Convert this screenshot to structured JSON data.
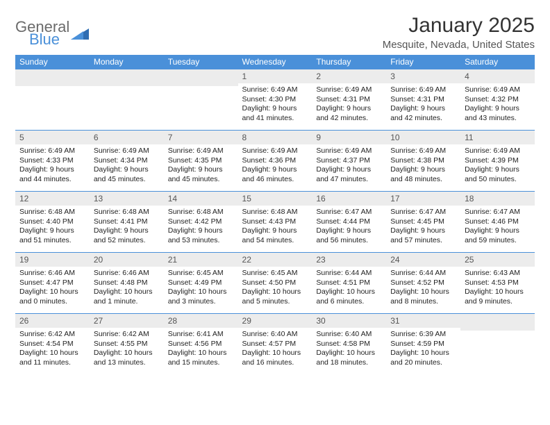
{
  "logo": {
    "text_top": "General",
    "text_bottom": "Blue",
    "top_color": "#7a7a7a",
    "bottom_color": "#4a90d9",
    "triangle_color": "#2f6db2"
  },
  "title": "January 2025",
  "subtitle": "Mesquite, Nevada, United States",
  "colors": {
    "header_bg": "#4a90d9",
    "header_fg": "#ffffff",
    "daynum_bg": "#ececec",
    "daynum_fg": "#555555",
    "rule": "#4a90d9",
    "page_bg": "#ffffff",
    "body_text": "#222222"
  },
  "fonts": {
    "title_size": 30,
    "subtitle_size": 15,
    "th_size": 12,
    "daynum_size": 12,
    "body_size": 10.5
  },
  "day_headers": [
    "Sunday",
    "Monday",
    "Tuesday",
    "Wednesday",
    "Thursday",
    "Friday",
    "Saturday"
  ],
  "weeks": [
    [
      null,
      null,
      null,
      {
        "n": "1",
        "sunrise": "Sunrise: 6:49 AM",
        "sunset": "Sunset: 4:30 PM",
        "daylight": "Daylight: 9 hours and 41 minutes."
      },
      {
        "n": "2",
        "sunrise": "Sunrise: 6:49 AM",
        "sunset": "Sunset: 4:31 PM",
        "daylight": "Daylight: 9 hours and 42 minutes."
      },
      {
        "n": "3",
        "sunrise": "Sunrise: 6:49 AM",
        "sunset": "Sunset: 4:31 PM",
        "daylight": "Daylight: 9 hours and 42 minutes."
      },
      {
        "n": "4",
        "sunrise": "Sunrise: 6:49 AM",
        "sunset": "Sunset: 4:32 PM",
        "daylight": "Daylight: 9 hours and 43 minutes."
      }
    ],
    [
      {
        "n": "5",
        "sunrise": "Sunrise: 6:49 AM",
        "sunset": "Sunset: 4:33 PM",
        "daylight": "Daylight: 9 hours and 44 minutes."
      },
      {
        "n": "6",
        "sunrise": "Sunrise: 6:49 AM",
        "sunset": "Sunset: 4:34 PM",
        "daylight": "Daylight: 9 hours and 45 minutes."
      },
      {
        "n": "7",
        "sunrise": "Sunrise: 6:49 AM",
        "sunset": "Sunset: 4:35 PM",
        "daylight": "Daylight: 9 hours and 45 minutes."
      },
      {
        "n": "8",
        "sunrise": "Sunrise: 6:49 AM",
        "sunset": "Sunset: 4:36 PM",
        "daylight": "Daylight: 9 hours and 46 minutes."
      },
      {
        "n": "9",
        "sunrise": "Sunrise: 6:49 AM",
        "sunset": "Sunset: 4:37 PM",
        "daylight": "Daylight: 9 hours and 47 minutes."
      },
      {
        "n": "10",
        "sunrise": "Sunrise: 6:49 AM",
        "sunset": "Sunset: 4:38 PM",
        "daylight": "Daylight: 9 hours and 48 minutes."
      },
      {
        "n": "11",
        "sunrise": "Sunrise: 6:49 AM",
        "sunset": "Sunset: 4:39 PM",
        "daylight": "Daylight: 9 hours and 50 minutes."
      }
    ],
    [
      {
        "n": "12",
        "sunrise": "Sunrise: 6:48 AM",
        "sunset": "Sunset: 4:40 PM",
        "daylight": "Daylight: 9 hours and 51 minutes."
      },
      {
        "n": "13",
        "sunrise": "Sunrise: 6:48 AM",
        "sunset": "Sunset: 4:41 PM",
        "daylight": "Daylight: 9 hours and 52 minutes."
      },
      {
        "n": "14",
        "sunrise": "Sunrise: 6:48 AM",
        "sunset": "Sunset: 4:42 PM",
        "daylight": "Daylight: 9 hours and 53 minutes."
      },
      {
        "n": "15",
        "sunrise": "Sunrise: 6:48 AM",
        "sunset": "Sunset: 4:43 PM",
        "daylight": "Daylight: 9 hours and 54 minutes."
      },
      {
        "n": "16",
        "sunrise": "Sunrise: 6:47 AM",
        "sunset": "Sunset: 4:44 PM",
        "daylight": "Daylight: 9 hours and 56 minutes."
      },
      {
        "n": "17",
        "sunrise": "Sunrise: 6:47 AM",
        "sunset": "Sunset: 4:45 PM",
        "daylight": "Daylight: 9 hours and 57 minutes."
      },
      {
        "n": "18",
        "sunrise": "Sunrise: 6:47 AM",
        "sunset": "Sunset: 4:46 PM",
        "daylight": "Daylight: 9 hours and 59 minutes."
      }
    ],
    [
      {
        "n": "19",
        "sunrise": "Sunrise: 6:46 AM",
        "sunset": "Sunset: 4:47 PM",
        "daylight": "Daylight: 10 hours and 0 minutes."
      },
      {
        "n": "20",
        "sunrise": "Sunrise: 6:46 AM",
        "sunset": "Sunset: 4:48 PM",
        "daylight": "Daylight: 10 hours and 1 minute."
      },
      {
        "n": "21",
        "sunrise": "Sunrise: 6:45 AM",
        "sunset": "Sunset: 4:49 PM",
        "daylight": "Daylight: 10 hours and 3 minutes."
      },
      {
        "n": "22",
        "sunrise": "Sunrise: 6:45 AM",
        "sunset": "Sunset: 4:50 PM",
        "daylight": "Daylight: 10 hours and 5 minutes."
      },
      {
        "n": "23",
        "sunrise": "Sunrise: 6:44 AM",
        "sunset": "Sunset: 4:51 PM",
        "daylight": "Daylight: 10 hours and 6 minutes."
      },
      {
        "n": "24",
        "sunrise": "Sunrise: 6:44 AM",
        "sunset": "Sunset: 4:52 PM",
        "daylight": "Daylight: 10 hours and 8 minutes."
      },
      {
        "n": "25",
        "sunrise": "Sunrise: 6:43 AM",
        "sunset": "Sunset: 4:53 PM",
        "daylight": "Daylight: 10 hours and 9 minutes."
      }
    ],
    [
      {
        "n": "26",
        "sunrise": "Sunrise: 6:42 AM",
        "sunset": "Sunset: 4:54 PM",
        "daylight": "Daylight: 10 hours and 11 minutes."
      },
      {
        "n": "27",
        "sunrise": "Sunrise: 6:42 AM",
        "sunset": "Sunset: 4:55 PM",
        "daylight": "Daylight: 10 hours and 13 minutes."
      },
      {
        "n": "28",
        "sunrise": "Sunrise: 6:41 AM",
        "sunset": "Sunset: 4:56 PM",
        "daylight": "Daylight: 10 hours and 15 minutes."
      },
      {
        "n": "29",
        "sunrise": "Sunrise: 6:40 AM",
        "sunset": "Sunset: 4:57 PM",
        "daylight": "Daylight: 10 hours and 16 minutes."
      },
      {
        "n": "30",
        "sunrise": "Sunrise: 6:40 AM",
        "sunset": "Sunset: 4:58 PM",
        "daylight": "Daylight: 10 hours and 18 minutes."
      },
      {
        "n": "31",
        "sunrise": "Sunrise: 6:39 AM",
        "sunset": "Sunset: 4:59 PM",
        "daylight": "Daylight: 10 hours and 20 minutes."
      },
      null
    ]
  ]
}
